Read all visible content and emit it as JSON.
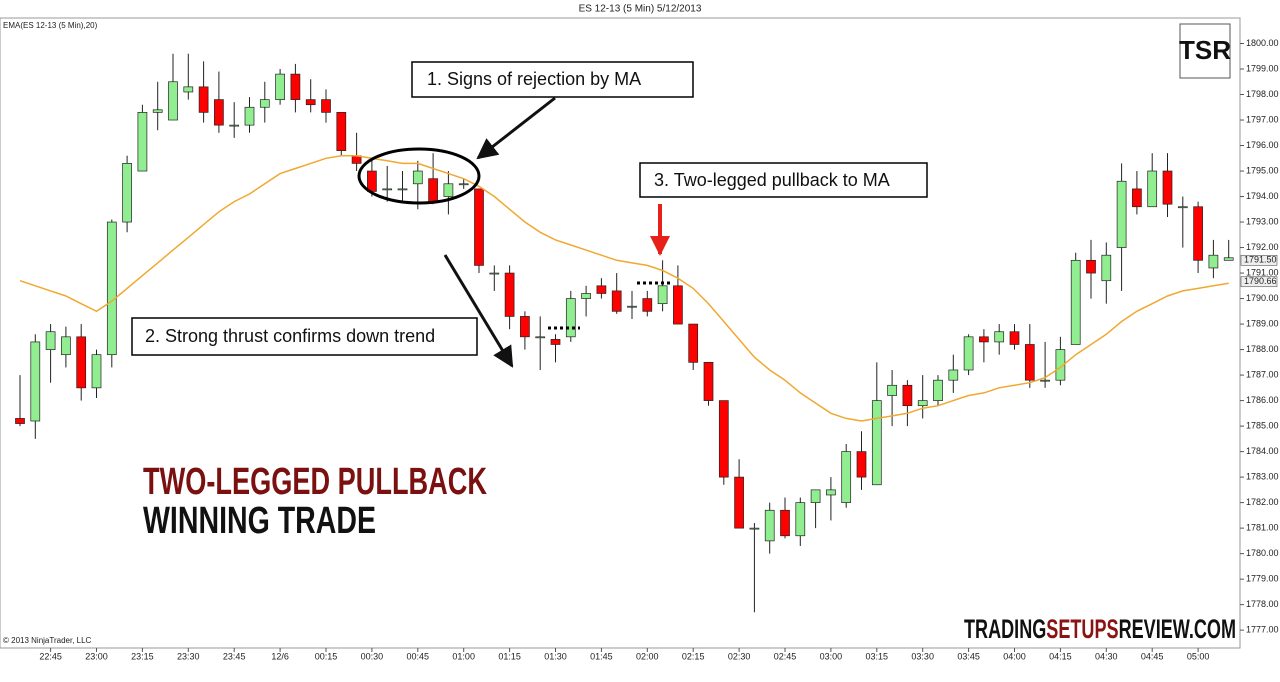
{
  "chart_data": {
    "type": "candlestick",
    "title": "ES 12-13 (5 Min)  5/12/2013",
    "copyright": "© 2013 NinjaTrader, LLC",
    "logo": "TSR",
    "heading": [
      "TWO-LEGGED PULLBACK",
      "WINNING TRADE"
    ],
    "watermark": [
      "TRADING",
      "SETUPS",
      "REVIEW.COM"
    ],
    "annotations": [
      "1. Signs of rejection by MA",
      "2. Strong thrust confirms down trend",
      "3. Two-legged pullback to MA"
    ],
    "categories": [
      null,
      null,
      "22:45",
      null,
      null,
      "23:00",
      null,
      null,
      "23:15",
      null,
      null,
      "23:30",
      null,
      null,
      "23:45",
      null,
      null,
      "12/6",
      null,
      null,
      "00:15",
      null,
      null,
      "00:30",
      null,
      null,
      "00:45",
      null,
      null,
      "01:00",
      null,
      null,
      "01:15",
      null,
      null,
      "01:30",
      null,
      null,
      "01:45",
      null,
      null,
      "02:00",
      null,
      null,
      "02:15",
      null,
      null,
      "02:30",
      null,
      null,
      "02:45",
      null,
      null,
      "03:00",
      null,
      null,
      "03:15",
      null,
      null,
      "03:30",
      null,
      null,
      "03:45",
      null,
      null,
      "04:00",
      null,
      null,
      "04:15",
      null,
      null,
      "04:30",
      null,
      null,
      "04:45",
      null,
      null,
      "05:00",
      null,
      null
    ],
    "up_color": "#90ee90",
    "down_color": "#ff0000",
    "open": [
      1785.3,
      1785.2,
      1788.0,
      1787.8,
      1788.5,
      1786.5,
      1787.8,
      1793.0,
      1795.0,
      1797.3,
      1797.0,
      1798.1,
      1798.3,
      1797.8,
      1796.8,
      1796.8,
      1797.5,
      1797.8,
      1798.8,
      1797.8,
      1797.8,
      1797.3,
      1795.6,
      1795.0,
      1794.3,
      1794.3,
      1794.5,
      1794.7,
      1794.0,
      1794.5,
      1794.3,
      1791.0,
      1791.0,
      1789.3,
      1788.5,
      1788.4,
      1788.5,
      1790.0,
      1790.5,
      1790.3,
      1789.7,
      1790.0,
      1789.8,
      1790.5,
      1789.0,
      1787.5,
      1786.0,
      1783.0,
      1781.0,
      1780.5,
      1781.7,
      1780.7,
      1782.0,
      1782.3,
      1782.0,
      1784.0,
      1782.7,
      1786.2,
      1786.6,
      1785.8,
      1786.0,
      1786.8,
      1787.2,
      1788.5,
      1788.3,
      1788.7,
      1788.2,
      1786.8,
      1786.8,
      1788.2,
      1791.5,
      1790.7,
      1792.0,
      1794.3,
      1793.6,
      1795.0,
      1793.6,
      1793.6,
      1791.2,
      1791.5
    ],
    "high": [
      1787.0,
      1788.6,
      1789.0,
      1788.9,
      1789.0,
      1788.0,
      1793.1,
      1795.6,
      1797.6,
      1798.5,
      1799.6,
      1799.6,
      1799.3,
      1798.9,
      1797.7,
      1797.9,
      1798.5,
      1799.0,
      1799.2,
      1798.6,
      1798.2,
      1797.3,
      1796.5,
      1795.5,
      1795.2,
      1795.0,
      1795.4,
      1795.7,
      1795.0,
      1794.7,
      1794.3,
      1791.3,
      1791.3,
      1789.5,
      1789.3,
      1788.6,
      1790.3,
      1790.5,
      1790.8,
      1791.0,
      1790.3,
      1790.3,
      1791.5,
      1791.3,
      1789.0,
      1787.5,
      1786.0,
      1783.7,
      1781.2,
      1782.0,
      1782.2,
      1782.2,
      1782.5,
      1783.0,
      1784.3,
      1784.8,
      1787.5,
      1787.2,
      1786.8,
      1787.0,
      1787.0,
      1787.8,
      1788.6,
      1788.8,
      1789.0,
      1789.0,
      1789.0,
      1788.3,
      1788.5,
      1791.8,
      1792.3,
      1792.2,
      1795.3,
      1795.0,
      1795.7,
      1795.7,
      1794.0,
      1793.8,
      1792.3,
      1792.3
    ],
    "low": [
      1785.0,
      1784.5,
      1786.7,
      1787.3,
      1786.0,
      1786.1,
      1787.3,
      1792.6,
      1795.0,
      1796.6,
      1797.0,
      1797.8,
      1796.9,
      1796.5,
      1796.3,
      1796.5,
      1796.9,
      1797.6,
      1797.3,
      1797.3,
      1796.9,
      1795.6,
      1795.0,
      1794.0,
      1793.8,
      1793.8,
      1793.5,
      1793.7,
      1793.3,
      1794.3,
      1791.0,
      1790.3,
      1788.8,
      1788.0,
      1787.2,
      1787.5,
      1788.3,
      1789.3,
      1790.0,
      1789.4,
      1789.2,
      1789.3,
      1789.5,
      1789.0,
      1787.2,
      1785.8,
      1782.7,
      1781.0,
      1777.7,
      1780.0,
      1780.6,
      1780.3,
      1781.0,
      1781.3,
      1781.8,
      1782.5,
      1782.7,
      1785.0,
      1785.0,
      1785.3,
      1785.8,
      1786.3,
      1787.0,
      1787.5,
      1787.8,
      1788.0,
      1786.5,
      1786.5,
      1786.6,
      1788.2,
      1790.0,
      1789.8,
      1790.3,
      1793.3,
      1793.6,
      1793.2,
      1792.0,
      1791.0,
      1790.8,
      1791.5
    ],
    "close": [
      1785.1,
      1788.3,
      1788.7,
      1788.5,
      1786.5,
      1787.8,
      1793.0,
      1795.3,
      1797.3,
      1797.4,
      1798.5,
      1798.3,
      1797.3,
      1796.8,
      1796.8,
      1797.5,
      1797.8,
      1798.8,
      1797.8,
      1797.6,
      1797.3,
      1795.8,
      1795.3,
      1794.2,
      1794.3,
      1794.3,
      1795.0,
      1793.8,
      1794.5,
      1794.5,
      1791.3,
      1791.0,
      1789.3,
      1788.5,
      1788.5,
      1788.2,
      1790.0,
      1790.2,
      1790.2,
      1789.5,
      1789.7,
      1789.5,
      1790.5,
      1789.0,
      1787.5,
      1786.0,
      1783.0,
      1781.0,
      1781.0,
      1781.7,
      1780.7,
      1782.0,
      1782.5,
      1782.5,
      1784.0,
      1783.0,
      1786.0,
      1786.6,
      1785.8,
      1786.0,
      1786.8,
      1787.2,
      1788.5,
      1788.3,
      1788.7,
      1788.2,
      1786.8,
      1786.8,
      1788.0,
      1791.5,
      1791.0,
      1791.7,
      1794.6,
      1793.6,
      1795.0,
      1793.7,
      1793.6,
      1791.5,
      1791.7,
      1791.6
    ],
    "series": [
      {
        "name": "EMA(ES 12-13 (5 Min),20)",
        "color": "#f0a830",
        "values": [
          1790.7,
          1790.5,
          1790.3,
          1790.1,
          1789.8,
          1789.5,
          1789.9,
          1790.4,
          1790.9,
          1791.4,
          1791.9,
          1792.4,
          1792.9,
          1793.4,
          1793.8,
          1794.1,
          1794.5,
          1794.9,
          1795.1,
          1795.3,
          1795.5,
          1795.6,
          1795.6,
          1795.5,
          1795.4,
          1795.3,
          1795.3,
          1795.1,
          1794.9,
          1794.7,
          1794.4,
          1794.0,
          1793.5,
          1793.0,
          1792.6,
          1792.3,
          1792.1,
          1791.9,
          1791.7,
          1791.5,
          1791.4,
          1791.3,
          1791.1,
          1790.8,
          1790.4,
          1789.8,
          1789.1,
          1788.4,
          1787.7,
          1787.2,
          1786.8,
          1786.3,
          1785.9,
          1785.5,
          1785.3,
          1785.2,
          1785.3,
          1785.4,
          1785.5,
          1785.7,
          1785.8,
          1786.0,
          1786.2,
          1786.3,
          1786.5,
          1786.6,
          1786.7,
          1786.9,
          1787.3,
          1787.8,
          1788.2,
          1788.6,
          1789.1,
          1789.5,
          1789.8,
          1790.1,
          1790.3,
          1790.4,
          1790.5,
          1790.6
        ]
      }
    ],
    "price_markers": [
      {
        "value": 1791.5,
        "label": "1791.50"
      },
      {
        "value": 1790.66,
        "label": "1790.66"
      }
    ],
    "ylim": [
      1776.3,
      1801.0
    ],
    "yticks": [
      {
        "value": 1777,
        "label": "1777.00"
      },
      {
        "value": 1778,
        "label": "1778.00"
      },
      {
        "value": 1779,
        "label": "1779.00"
      },
      {
        "value": 1780,
        "label": "1780.00"
      },
      {
        "value": 1781,
        "label": "1781.00"
      },
      {
        "value": 1782,
        "label": "1782.00"
      },
      {
        "value": 1783,
        "label": "1783.00"
      },
      {
        "value": 1784,
        "label": "1784.00"
      },
      {
        "value": 1785,
        "label": "1785.00"
      },
      {
        "value": 1786,
        "label": "1786.00"
      },
      {
        "value": 1787,
        "label": "1787.00"
      },
      {
        "value": 1788,
        "label": "1788.00"
      },
      {
        "value": 1789,
        "label": "1789.00"
      },
      {
        "value": 1790,
        "label": "1790.00"
      },
      {
        "value": 1791,
        "label": "1791.00"
      },
      {
        "value": 1792,
        "label": "1792.00"
      },
      {
        "value": 1793,
        "label": "1793.00"
      },
      {
        "value": 1794,
        "label": "1794.00"
      },
      {
        "value": 1795,
        "label": "1795.00"
      },
      {
        "value": 1796,
        "label": "1796.00"
      },
      {
        "value": 1797,
        "label": "1797.00"
      },
      {
        "value": 1798,
        "label": "1798.00"
      },
      {
        "value": 1799,
        "label": "1799.00"
      },
      {
        "value": 1800,
        "label": "1800.00"
      }
    ],
    "grid": false
  }
}
